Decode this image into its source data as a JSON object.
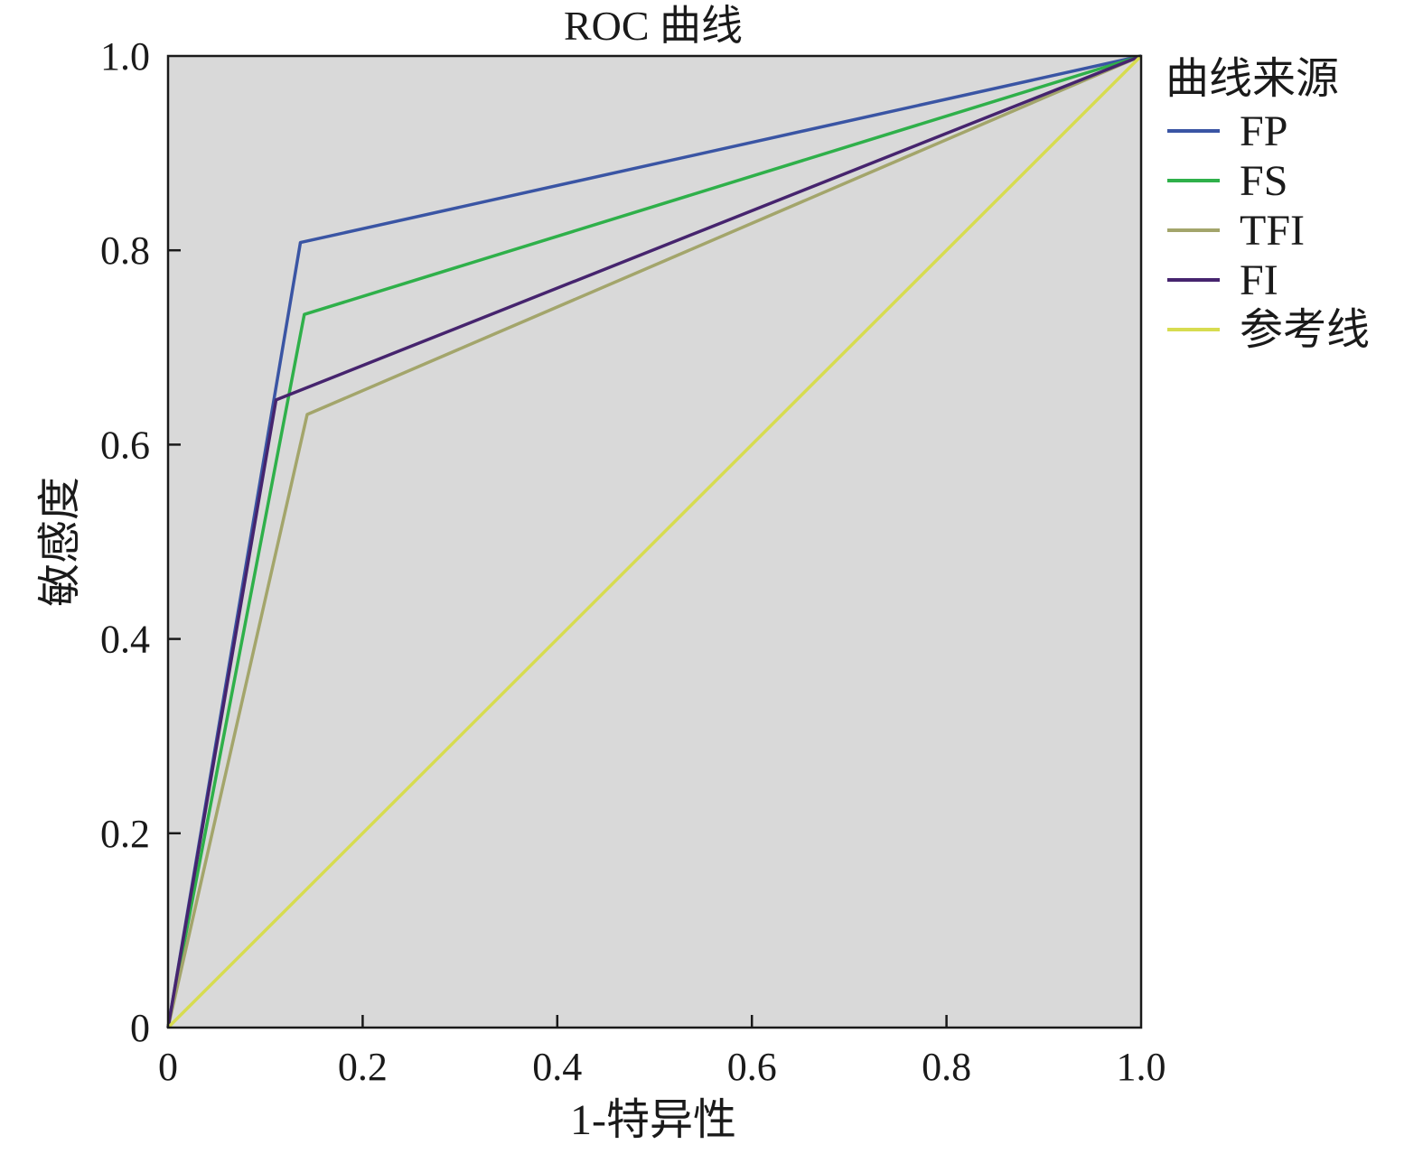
{
  "chart_data": {
    "type": "line",
    "title": "ROC 曲线",
    "xlabel": "1-特异性",
    "ylabel": "敏感度",
    "xlim": [
      0,
      1
    ],
    "ylim": [
      0,
      1
    ],
    "x_ticks": [
      "0",
      "0.2",
      "0.4",
      "0.6",
      "0.8",
      "1.0"
    ],
    "y_ticks": [
      "0",
      "0.2",
      "0.4",
      "0.6",
      "0.8",
      "1.0"
    ],
    "grid": false,
    "plot_background": "#d9d9d9",
    "legend": {
      "title": "曲线来源",
      "placement": "outside-right-top"
    },
    "series": [
      {
        "name": "FP",
        "color": "#3a55a4",
        "x": [
          0,
          0.136,
          1
        ],
        "y": [
          0,
          0.808,
          1
        ]
      },
      {
        "name": "FS",
        "color": "#2fb04a",
        "x": [
          0,
          0.14,
          1
        ],
        "y": [
          0,
          0.734,
          1
        ]
      },
      {
        "name": "TFI",
        "color": "#a3a56b",
        "x": [
          0,
          0.143,
          1
        ],
        "y": [
          0,
          0.631,
          1
        ]
      },
      {
        "name": "FI",
        "color": "#46246e",
        "x": [
          0,
          0.111,
          1
        ],
        "y": [
          0,
          0.646,
          1
        ]
      },
      {
        "name": "参考线",
        "color": "#d7dc50",
        "x": [
          0,
          1
        ],
        "y": [
          0,
          1
        ]
      }
    ]
  }
}
